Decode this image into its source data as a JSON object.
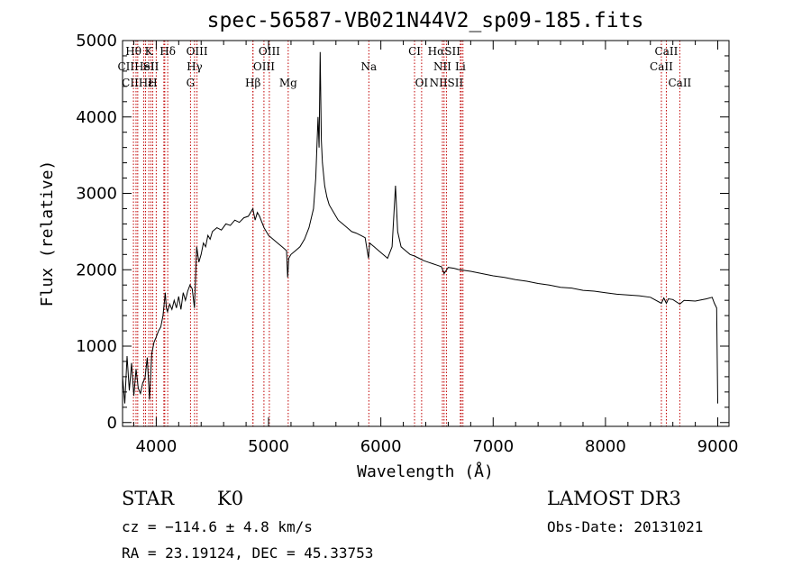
{
  "chart_data": {
    "type": "line",
    "title": "spec-56587-VB021N44V2_sp09-185.fits",
    "xlabel": "Wavelength (Å)",
    "ylabel": "Flux (relative)",
    "xlim": [
      3700,
      9100
    ],
    "ylim": [
      -50,
      5000
    ],
    "xticks": [
      4000,
      5000,
      6000,
      7000,
      8000,
      9000
    ],
    "yticks": [
      0,
      1000,
      2000,
      3000,
      4000,
      5000
    ],
    "series": [
      {
        "points": [
          [
            3700,
            600
          ],
          [
            3720,
            250
          ],
          [
            3740,
            870
          ],
          [
            3760,
            420
          ],
          [
            3780,
            780
          ],
          [
            3800,
            350
          ],
          [
            3820,
            700
          ],
          [
            3840,
            450
          ],
          [
            3860,
            380
          ],
          [
            3880,
            520
          ],
          [
            3900,
            580
          ],
          [
            3920,
            850
          ],
          [
            3940,
            300
          ],
          [
            3960,
            900
          ],
          [
            3980,
            1050
          ],
          [
            4000,
            1120
          ],
          [
            4020,
            1200
          ],
          [
            4040,
            1250
          ],
          [
            4060,
            1400
          ],
          [
            4080,
            1700
          ],
          [
            4090,
            1500
          ],
          [
            4100,
            1450
          ],
          [
            4120,
            1550
          ],
          [
            4140,
            1480
          ],
          [
            4160,
            1600
          ],
          [
            4180,
            1500
          ],
          [
            4200,
            1650
          ],
          [
            4220,
            1480
          ],
          [
            4240,
            1700
          ],
          [
            4260,
            1600
          ],
          [
            4280,
            1720
          ],
          [
            4300,
            1800
          ],
          [
            4320,
            1750
          ],
          [
            4340,
            1500
          ],
          [
            4360,
            2300
          ],
          [
            4380,
            2100
          ],
          [
            4400,
            2200
          ],
          [
            4420,
            2350
          ],
          [
            4440,
            2300
          ],
          [
            4460,
            2450
          ],
          [
            4480,
            2400
          ],
          [
            4500,
            2500
          ],
          [
            4540,
            2550
          ],
          [
            4580,
            2520
          ],
          [
            4620,
            2600
          ],
          [
            4660,
            2580
          ],
          [
            4700,
            2650
          ],
          [
            4740,
            2620
          ],
          [
            4780,
            2680
          ],
          [
            4820,
            2700
          ],
          [
            4860,
            2800
          ],
          [
            4880,
            2650
          ],
          [
            4900,
            2750
          ],
          [
            4920,
            2700
          ],
          [
            4960,
            2550
          ],
          [
            5000,
            2450
          ],
          [
            5040,
            2400
          ],
          [
            5080,
            2350
          ],
          [
            5120,
            2300
          ],
          [
            5160,
            2250
          ],
          [
            5170,
            1900
          ],
          [
            5180,
            2150
          ],
          [
            5200,
            2200
          ],
          [
            5240,
            2250
          ],
          [
            5280,
            2300
          ],
          [
            5320,
            2400
          ],
          [
            5360,
            2550
          ],
          [
            5400,
            2800
          ],
          [
            5420,
            3200
          ],
          [
            5440,
            4000
          ],
          [
            5450,
            3600
          ],
          [
            5460,
            4850
          ],
          [
            5470,
            3700
          ],
          [
            5480,
            3400
          ],
          [
            5500,
            3100
          ],
          [
            5520,
            2950
          ],
          [
            5540,
            2850
          ],
          [
            5580,
            2750
          ],
          [
            5620,
            2650
          ],
          [
            5660,
            2600
          ],
          [
            5700,
            2550
          ],
          [
            5740,
            2500
          ],
          [
            5780,
            2480
          ],
          [
            5820,
            2450
          ],
          [
            5860,
            2420
          ],
          [
            5890,
            2150
          ],
          [
            5900,
            2350
          ],
          [
            5940,
            2300
          ],
          [
            5980,
            2250
          ],
          [
            6020,
            2200
          ],
          [
            6060,
            2150
          ],
          [
            6100,
            2300
          ],
          [
            6130,
            3100
          ],
          [
            6150,
            2500
          ],
          [
            6180,
            2300
          ],
          [
            6220,
            2250
          ],
          [
            6260,
            2200
          ],
          [
            6300,
            2180
          ],
          [
            6340,
            2150
          ],
          [
            6380,
            2120
          ],
          [
            6420,
            2100
          ],
          [
            6460,
            2080
          ],
          [
            6500,
            2060
          ],
          [
            6540,
            2040
          ],
          [
            6563,
            1950
          ],
          [
            6600,
            2030
          ],
          [
            6650,
            2020
          ],
          [
            6700,
            2000
          ],
          [
            6800,
            1980
          ],
          [
            6900,
            1950
          ],
          [
            7000,
            1920
          ],
          [
            7100,
            1900
          ],
          [
            7200,
            1870
          ],
          [
            7300,
            1850
          ],
          [
            7400,
            1820
          ],
          [
            7500,
            1800
          ],
          [
            7600,
            1770
          ],
          [
            7700,
            1760
          ],
          [
            7800,
            1730
          ],
          [
            7900,
            1720
          ],
          [
            8000,
            1700
          ],
          [
            8100,
            1680
          ],
          [
            8200,
            1670
          ],
          [
            8300,
            1660
          ],
          [
            8400,
            1640
          ],
          [
            8498,
            1560
          ],
          [
            8520,
            1630
          ],
          [
            8542,
            1560
          ],
          [
            8560,
            1620
          ],
          [
            8600,
            1610
          ],
          [
            8662,
            1550
          ],
          [
            8700,
            1600
          ],
          [
            8800,
            1590
          ],
          [
            8900,
            1620
          ],
          [
            8950,
            1640
          ],
          [
            8970,
            1560
          ],
          [
            8990,
            1500
          ],
          [
            9000,
            250
          ]
        ]
      }
    ],
    "line_markers": [
      {
        "label": "Hθ",
        "x": 3797,
        "row": 1
      },
      {
        "label": "CIIHε",
        "x": 3835,
        "row": 3
      },
      {
        "label": "CIIHeI",
        "x": 3820,
        "row": 2
      },
      {
        "label": "K",
        "x": 3934,
        "row": 1
      },
      {
        "label": "SII",
        "x": 3953,
        "row": 2
      },
      {
        "label": "H",
        "x": 3969,
        "row": 3
      },
      {
        "label": "Hδ",
        "x": 4102,
        "row": 1
      },
      {
        "label": "OIII",
        "x": 4363,
        "row": 1
      },
      {
        "label": "Hγ",
        "x": 4341,
        "row": 2
      },
      {
        "label": "G",
        "x": 4305,
        "row": 3
      },
      {
        "label": "OIII",
        "x": 5007,
        "row": 1
      },
      {
        "label": "OIII",
        "x": 4959,
        "row": 2
      },
      {
        "label": "Hβ",
        "x": 4861,
        "row": 3
      },
      {
        "label": "Mg",
        "x": 5175,
        "row": 3
      },
      {
        "label": "Na",
        "x": 5893,
        "row": 2
      },
      {
        "label": "CI",
        "x": 6300,
        "row": 1
      },
      {
        "label": "OI",
        "x": 6363,
        "row": 3
      },
      {
        "label": "HαSII",
        "x": 6563,
        "row": 1
      },
      {
        "label": "NII",
        "x": 6548,
        "row": 2
      },
      {
        "label": "Li",
        "x": 6708,
        "row": 2
      },
      {
        "label": "NIISII",
        "x": 6584,
        "row": 3
      },
      {
        "label": "CaII",
        "x": 8542,
        "row": 1
      },
      {
        "label": "CaII",
        "x": 8498,
        "row": 2
      },
      {
        "label": "CaII",
        "x": 8662,
        "row": 3
      }
    ],
    "extra_marker_lines": [
      3889,
      3905,
      4000,
      4068,
      4076,
      4861,
      6716,
      6731
    ]
  },
  "info": {
    "object_class": "STAR",
    "subclass": "K0",
    "survey": "LAMOST DR3",
    "redshift": "cz = −114.6 ± 4.8 km/s",
    "obs_date": "Obs-Date: 20131021",
    "coords": "RA =  23.19124, DEC =  45.33753"
  },
  "colors": {
    "spectrum": "#000000",
    "marker_lines": "#c00000"
  }
}
